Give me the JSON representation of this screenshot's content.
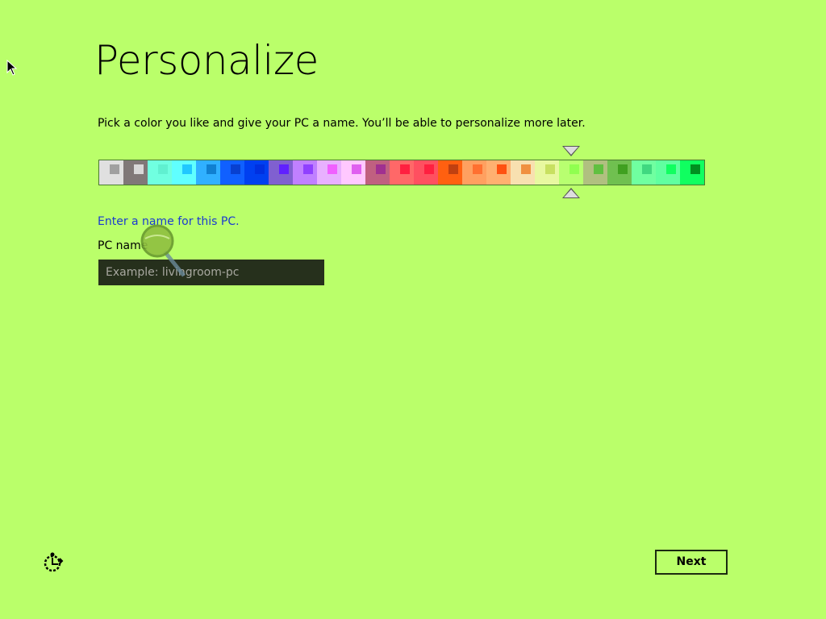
{
  "title": "Personalize",
  "subtitle": "Pick a color you like and give your PC a name. You’ll be able to personalize more later.",
  "colors": {
    "background": "#baff6a",
    "selected_index": 19,
    "swatches": [
      [
        "#e0e0e0",
        "#a0a0a0"
      ],
      [
        "#807878",
        "#d8d8d8"
      ],
      [
        "#70ffe0",
        "#60f0d0"
      ],
      [
        "#60ffff",
        "#20c8ff"
      ],
      [
        "#30b0ff",
        "#1080d0"
      ],
      [
        "#1060ff",
        "#0840d0"
      ],
      [
        "#0040f0",
        "#0030e0"
      ],
      [
        "#8060d0",
        "#6020ff"
      ],
      [
        "#c080ff",
        "#9040ff"
      ],
      [
        "#e8b0ff",
        "#f060ff"
      ],
      [
        "#ffc8ff",
        "#e060f0"
      ],
      [
        "#c06080",
        "#a03090"
      ],
      [
        "#ff6868",
        "#ff2040"
      ],
      [
        "#ff5060",
        "#ff2040"
      ],
      [
        "#ff6010",
        "#c04010"
      ],
      [
        "#ffa060",
        "#ff7030"
      ],
      [
        "#ffb070",
        "#ff5010"
      ],
      [
        "#f8e0b0",
        "#f09040"
      ],
      [
        "#e8f8a0",
        "#c8e060"
      ],
      [
        "#b8ff70",
        "#90ff50"
      ],
      [
        "#b0c080",
        "#60c040"
      ],
      [
        "#70c050",
        "#40a020"
      ],
      [
        "#70ffa0",
        "#40d880"
      ],
      [
        "#60ffa0",
        "#10ff60"
      ],
      [
        "#10ff60",
        "#009020"
      ]
    ]
  },
  "name_prompt": "Enter a name for this PC.",
  "pc_name_label": "PC name",
  "pc_name_placeholder": "Example: livingroom-pc",
  "pc_name_value": "",
  "next_label": "Next",
  "icons": {
    "ease_of_access": "ease-of-access-icon",
    "cursor": "mouse-pointer-icon",
    "magnifier": "magnifier-icon"
  }
}
